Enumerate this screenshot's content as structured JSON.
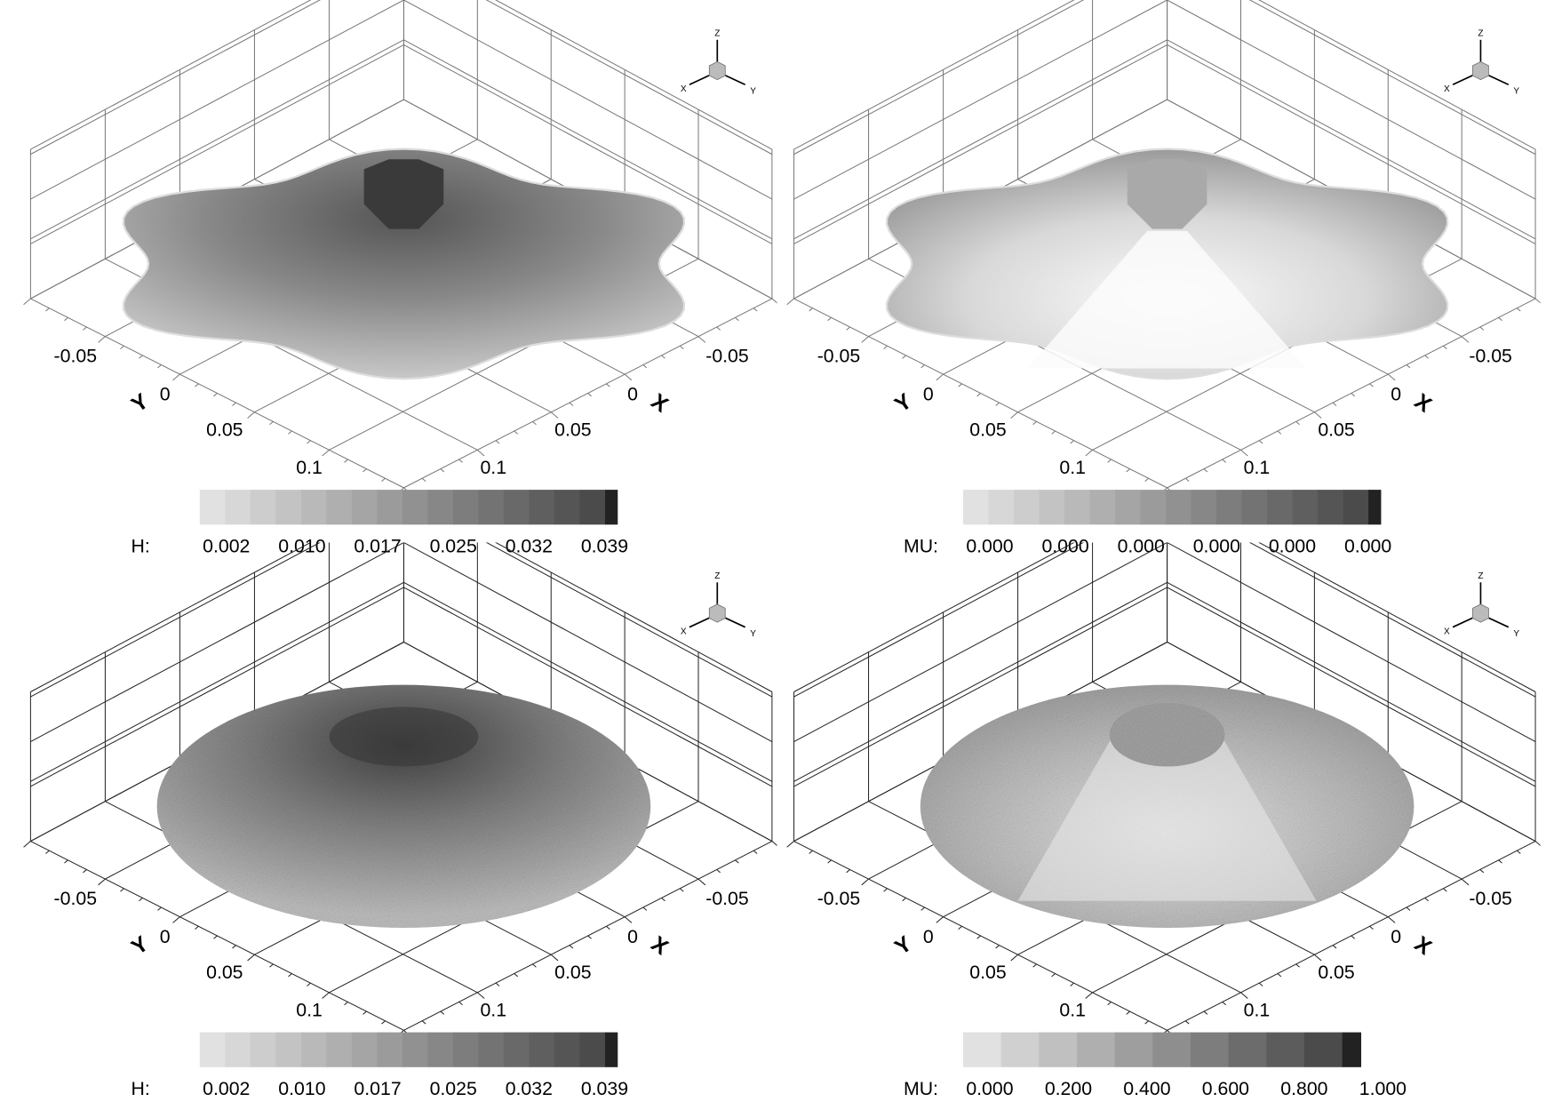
{
  "chart_data": [
    {
      "type": "surface",
      "panel": "top-left",
      "variable": "H",
      "colorbar": {
        "label": "H:",
        "ticks": [
          "0.002",
          "0.010",
          "0.017",
          "0.025",
          "0.032",
          "0.039"
        ],
        "levels": 17,
        "colormap": "grayscale light-to-dark"
      },
      "x_axis": {
        "label": "X",
        "ticks": [
          "-0.05",
          "0",
          "0.05",
          "0.1"
        ]
      },
      "y_axis": {
        "label": "Y",
        "ticks": [
          "-0.05",
          "0",
          "0.05",
          "0.1"
        ]
      },
      "surface_shape": "hexagonal star",
      "grid": true
    },
    {
      "type": "surface",
      "panel": "top-right",
      "variable": "MU",
      "colorbar": {
        "label": "MU:",
        "ticks": [
          "0.000",
          "0.000",
          "0.000",
          "0.000",
          "0.000",
          "0.000"
        ],
        "levels": 17,
        "colormap": "grayscale light-to-dark"
      },
      "x_axis": {
        "label": "X",
        "ticks": [
          "-0.05",
          "0",
          "0.05",
          "0.1"
        ]
      },
      "y_axis": {
        "label": "Y",
        "ticks": [
          "-0.05",
          "0",
          "0.05",
          "0.1"
        ]
      },
      "surface_shape": "hexagonal star",
      "grid": true
    },
    {
      "type": "surface",
      "panel": "bottom-left",
      "variable": "H",
      "colorbar": {
        "label": "H:",
        "ticks": [
          "0.002",
          "0.010",
          "0.017",
          "0.025",
          "0.032",
          "0.039"
        ],
        "levels": 17,
        "colormap": "grayscale light-to-dark"
      },
      "x_axis": {
        "label": "X",
        "ticks": [
          "-0.05",
          "0",
          "0.05",
          "0.1"
        ]
      },
      "y_axis": {
        "label": "Y",
        "ticks": [
          "-0.05",
          "0",
          "0.05",
          "0.1"
        ]
      },
      "surface_shape": "circular cone",
      "grid": true
    },
    {
      "type": "surface",
      "panel": "bottom-right",
      "variable": "MU",
      "colorbar": {
        "label": "MU:",
        "ticks": [
          "0.000",
          "0.200",
          "0.400",
          "0.600",
          "0.800",
          "1.000"
        ],
        "levels": 11,
        "colormap": "grayscale light-to-dark"
      },
      "x_axis": {
        "label": "X",
        "ticks": [
          "-0.05",
          "0",
          "0.05",
          "0.1"
        ]
      },
      "y_axis": {
        "label": "Y",
        "ticks": [
          "-0.05",
          "0",
          "0.05",
          "0.1"
        ]
      },
      "surface_shape": "circular cone",
      "grid": true
    }
  ],
  "triad": {
    "x": "X",
    "y": "Y",
    "z": "Z"
  }
}
